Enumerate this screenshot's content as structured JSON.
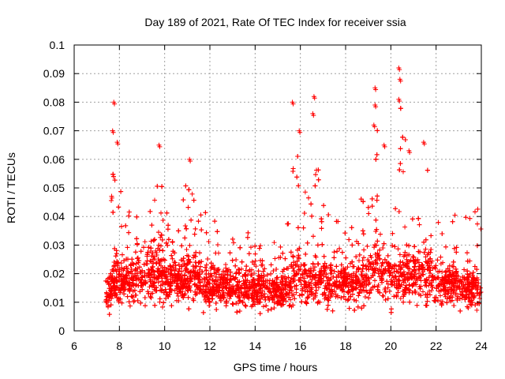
{
  "chart_data": {
    "type": "scatter",
    "title": "Day 189 of 2021, Rate Of TEC Index for receiver ssia",
    "xlabel": "GPS time / hours",
    "ylabel": "ROTI / TECUs",
    "xlim": [
      6,
      24
    ],
    "ylim": [
      0,
      0.1
    ],
    "xticks": [
      "6",
      "8",
      "10",
      "12",
      "14",
      "16",
      "18",
      "20",
      "22",
      "24"
    ],
    "yticks": [
      "0",
      "0.01",
      "0.02",
      "0.03",
      "0.04",
      "0.05",
      "0.06",
      "0.07",
      "0.08",
      "0.09",
      "0.1"
    ],
    "grid": true,
    "marker": "+",
    "color": "#ff0000",
    "x_data_range": [
      7.4,
      24.0
    ],
    "bulk_band": [
      0.005,
      0.025
    ],
    "notable_points": [
      {
        "x": 7.75,
        "y": 0.08
      },
      {
        "x": 7.7,
        "y": 0.07
      },
      {
        "x": 7.9,
        "y": 0.066
      },
      {
        "x": 9.75,
        "y": 0.065
      },
      {
        "x": 11.1,
        "y": 0.06
      },
      {
        "x": 15.65,
        "y": 0.08
      },
      {
        "x": 15.95,
        "y": 0.07
      },
      {
        "x": 16.6,
        "y": 0.082
      },
      {
        "x": 16.55,
        "y": 0.076
      },
      {
        "x": 19.3,
        "y": 0.085
      },
      {
        "x": 19.3,
        "y": 0.079
      },
      {
        "x": 19.25,
        "y": 0.072
      },
      {
        "x": 19.7,
        "y": 0.065
      },
      {
        "x": 20.35,
        "y": 0.092
      },
      {
        "x": 20.4,
        "y": 0.088
      },
      {
        "x": 20.35,
        "y": 0.081
      },
      {
        "x": 21.45,
        "y": 0.066
      },
      {
        "x": 20.8,
        "y": 0.063
      }
    ],
    "envelope": {
      "x": [
        7.4,
        7.7,
        8.0,
        8.5,
        9.0,
        9.5,
        9.75,
        10.2,
        10.8,
        11.1,
        11.5,
        12.0,
        12.5,
        13.0,
        13.5,
        14.0,
        14.5,
        15.0,
        15.5,
        15.7,
        16.0,
        16.3,
        16.6,
        17.0,
        17.5,
        18.0,
        18.5,
        19.0,
        19.3,
        19.6,
        20.0,
        20.4,
        20.8,
        21.2,
        21.5,
        22.0,
        22.5,
        23.0,
        23.5,
        24.0
      ],
      "y_max": [
        0.02,
        0.055,
        0.06,
        0.04,
        0.045,
        0.05,
        0.058,
        0.045,
        0.05,
        0.058,
        0.04,
        0.045,
        0.042,
        0.036,
        0.04,
        0.035,
        0.04,
        0.03,
        0.045,
        0.075,
        0.07,
        0.045,
        0.075,
        0.048,
        0.04,
        0.038,
        0.045,
        0.055,
        0.078,
        0.06,
        0.055,
        0.085,
        0.06,
        0.05,
        0.06,
        0.048,
        0.035,
        0.045,
        0.04,
        0.045
      ],
      "y_typ": [
        0.014,
        0.018,
        0.018,
        0.02,
        0.02,
        0.022,
        0.024,
        0.02,
        0.018,
        0.022,
        0.018,
        0.016,
        0.017,
        0.016,
        0.017,
        0.016,
        0.018,
        0.014,
        0.016,
        0.022,
        0.022,
        0.018,
        0.02,
        0.018,
        0.017,
        0.018,
        0.02,
        0.022,
        0.025,
        0.022,
        0.02,
        0.022,
        0.02,
        0.02,
        0.021,
        0.019,
        0.017,
        0.018,
        0.016,
        0.016
      ]
    }
  }
}
